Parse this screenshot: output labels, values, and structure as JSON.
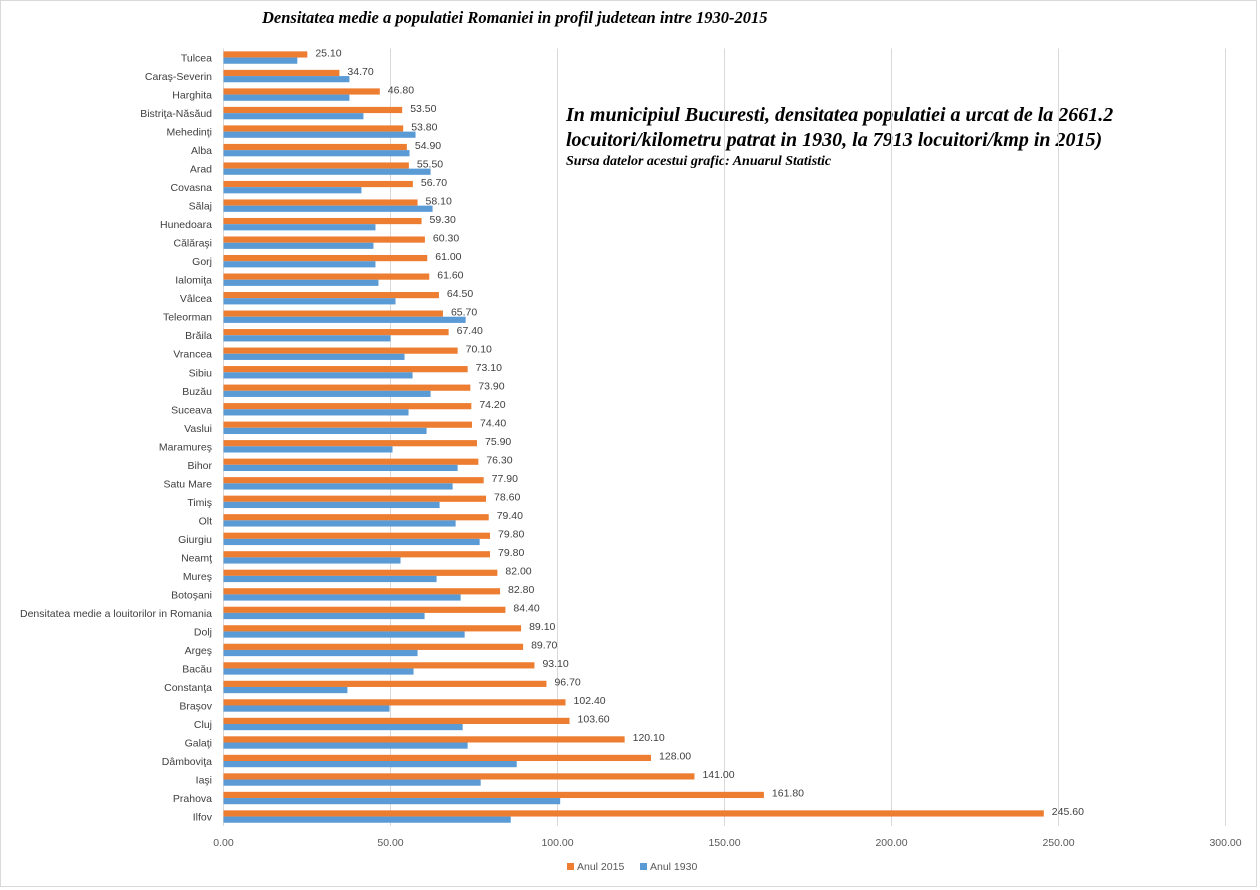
{
  "chart_data": {
    "type": "bar",
    "orientation": "horizontal",
    "title": "Densitatea medie a populatiei Romaniei in profil judetean intre 1930-2015",
    "annotation": {
      "line1": "In municipiul Bucuresti, densitatea populatiei a urcat de la 2661.2",
      "line2": "locuitori/kilometru patrat in 1930, la 7913 locuitori/kmp in 2015)",
      "source": "Sursa datelor acestui grafic: Anuarul Statistic"
    },
    "xlabel": "",
    "ylabel": "",
    "xlim": [
      0,
      300
    ],
    "x_ticks": [
      "0.00",
      "50.00",
      "100.00",
      "150.00",
      "200.00",
      "250.00",
      "300.00"
    ],
    "grid": true,
    "legend_position": "bottom",
    "categories": [
      "Tulcea",
      "Caraş-Severin",
      "Harghita",
      "Bistriţa-Năsăud",
      "Mehedinţi",
      "Alba",
      "Arad",
      "Covasna",
      "Sălaj",
      "Hunedoara",
      "Călăraşi",
      "Gorj",
      "Ialomiţa",
      "Vâlcea",
      "Teleorman",
      "Brăila",
      "Vrancea",
      "Sibiu",
      "Buzău",
      "Suceava",
      "Vaslui",
      "Maramureş",
      "Bihor",
      "Satu Mare",
      "Timiş",
      "Olt",
      "Giurgiu",
      "Neamţ",
      "Mureş",
      "Botoşani",
      "Densitatea medie a louitorilor in Romania",
      "Dolj",
      "Argeş",
      "Bacău",
      "Constanţa",
      "Braşov",
      "Cluj",
      "Galaţi",
      "Dâmboviţa",
      "Iaşi",
      "Prahova",
      "Ilfov"
    ],
    "series": [
      {
        "name": "Anul 2015",
        "color": "#ed7d31",
        "values": [
          25.1,
          34.7,
          46.8,
          53.5,
          53.8,
          54.9,
          55.5,
          56.7,
          58.1,
          59.3,
          60.3,
          61.0,
          61.6,
          64.5,
          65.7,
          67.4,
          70.1,
          73.1,
          73.9,
          74.2,
          74.4,
          75.9,
          76.3,
          77.9,
          78.6,
          79.4,
          79.8,
          79.8,
          82.0,
          82.8,
          84.4,
          89.1,
          89.7,
          93.1,
          96.7,
          102.4,
          103.6,
          120.1,
          128.0,
          141.0,
          161.8,
          245.6
        ],
        "labels": [
          "25.10",
          "34.70",
          "46.80",
          "53.50",
          "53.80",
          "54.90",
          "55.50",
          "56.70",
          "58.10",
          "59.30",
          "60.30",
          "61.00",
          "61.60",
          "64.50",
          "65.70",
          "67.40",
          "70.10",
          "73.10",
          "73.90",
          "74.20",
          "74.40",
          "75.90",
          "76.30",
          "77.90",
          "78.60",
          "79.40",
          "79.80",
          "79.80",
          "82.00",
          "82.80",
          "84.40",
          "89.10",
          "89.70",
          "93.10",
          "96.70",
          "102.40",
          "103.60",
          "120.10",
          "128.00",
          "141.00",
          "161.80",
          "245.60"
        ]
      },
      {
        "name": "Anul 1930",
        "color": "#5b9bd5",
        "values": [
          22.1,
          37.7,
          37.7,
          41.9,
          57.5,
          55.7,
          62.0,
          41.3,
          62.6,
          45.5,
          44.9,
          45.5,
          46.4,
          51.5,
          72.5,
          50.0,
          54.2,
          56.6,
          62.0,
          55.4,
          60.8,
          50.6,
          70.1,
          68.6,
          64.7,
          69.5,
          76.7,
          53.0,
          63.8,
          71.0,
          60.2,
          72.2,
          58.1,
          56.9,
          37.1,
          49.7,
          71.6,
          73.1,
          87.8,
          77.0,
          100.8,
          86.0
        ]
      }
    ]
  }
}
